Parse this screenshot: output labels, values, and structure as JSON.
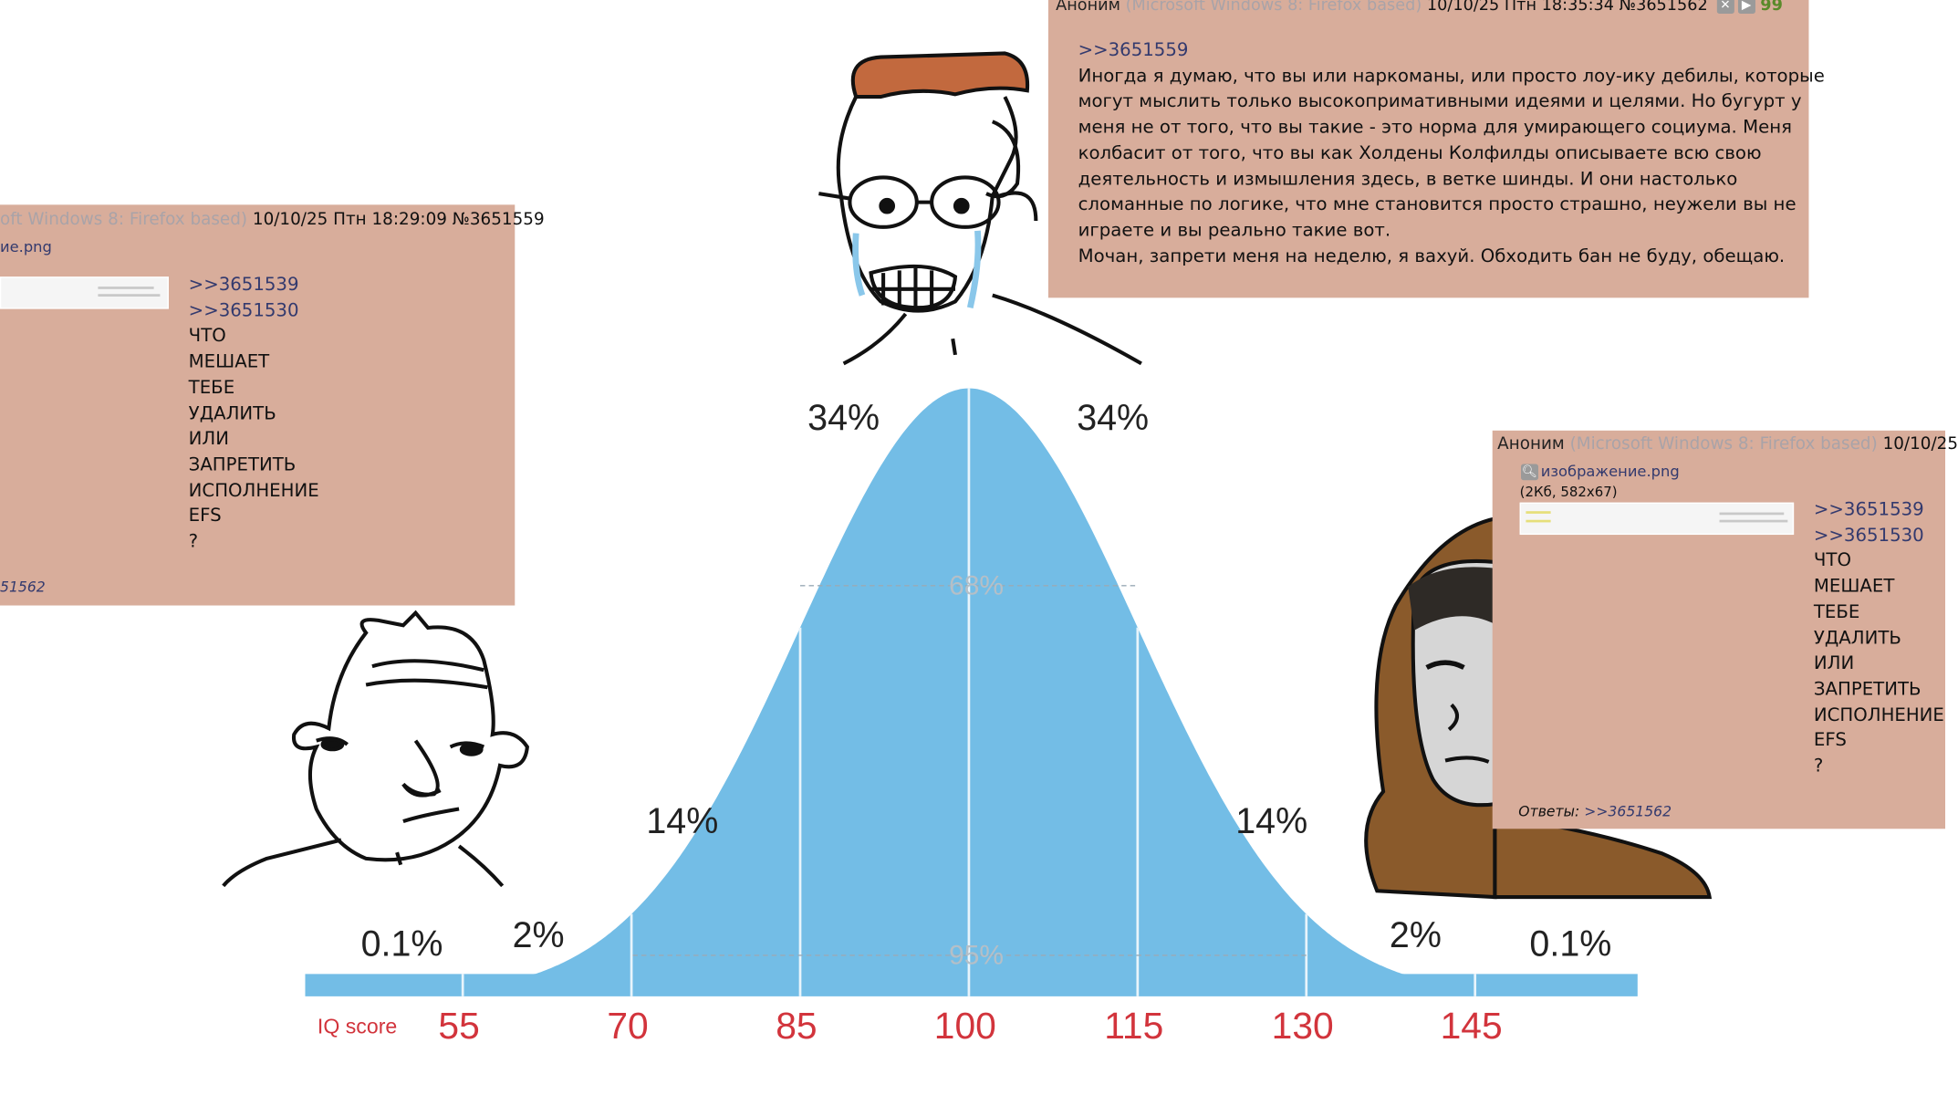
{
  "post_top": {
    "author": "Аноним",
    "user_agent": "(Microsoft Windows 8: Firefox based)",
    "datetime": "10/10/25 Птн 18:35:34",
    "number": "№3651562",
    "count": "99",
    "reply_link": ">>3651559",
    "lines": [
      "Иногда я думаю, что вы или наркоманы, или просто лоу-ику дебилы, которые",
      "могут мыслить только высокопримативными идеями и целями. Но бугурт у",
      "меня не от того, что вы такие - это норма для умирающего социума. Меня",
      "колбасит от того, что вы как Холдены Колфилды описываете всю свою",
      "деятельность и измышления здесь, в ветке шинды. И они настолько",
      "сломанные по логике, что мне становится просто страшно, неужели вы не",
      "играете и вы реально такие вот.",
      "Мочан, запрети меня на неделю, я вахуй. Обходить бан не буду, обещаю."
    ]
  },
  "post_left": {
    "user_agent": "oft Windows 8: Firefox based)",
    "datetime": "10/10/25 Птн 18:29:09",
    "number": "№3651559",
    "file": "ие.png",
    "links": [
      ">>3651539",
      ">>3651530"
    ],
    "lines": [
      "ЧТО",
      "МЕШАЕТ",
      "ТЕБЕ",
      "УДАЛИТЬ",
      "ИЛИ",
      "ЗАПРЕТИТЬ",
      "ИСПОЛНЕНИЕ",
      "EFS",
      "?"
    ],
    "reply_ref": "51562"
  },
  "post_right": {
    "author": "Аноним",
    "user_agent": "(Microsoft Windows 8: Firefox based)",
    "datetime": "10/10/25",
    "file": "изображение.png",
    "file_meta": "(2Кб, 582x67)",
    "links": [
      ">>3651539",
      ">>3651530"
    ],
    "lines": [
      "ЧТО",
      "МЕШАЕТ",
      "ТЕБЕ",
      "УДАЛИТЬ",
      "ИЛИ",
      "ЗАПРЕТИТЬ",
      "ИСПОЛНЕНИЕ",
      "EFS",
      "?"
    ],
    "replies_label": "Ответы:",
    "reply_ref": ">>3651562"
  },
  "bell_curve": {
    "curve_color": "#73bde6",
    "label_color": "#d2343c",
    "axis_label": "IQ score",
    "ticks": [
      "55",
      "70",
      "85",
      "100",
      "115",
      "130",
      "145"
    ],
    "percent_labels": {
      "center_left": "34%",
      "center_right": "34%",
      "inner_left": "14%",
      "inner_right": "14%",
      "outer_left": "2%",
      "outer_right": "2%",
      "tail_left": "0.1%",
      "tail_right": "0.1%",
      "one_sd": "68%",
      "two_sd": "95%"
    }
  }
}
